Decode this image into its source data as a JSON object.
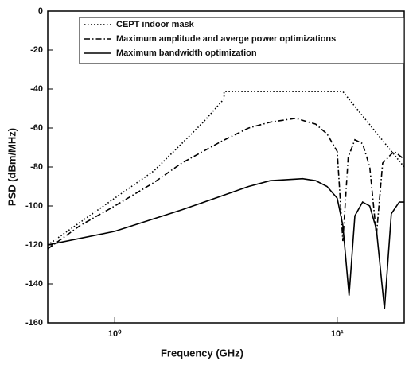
{
  "chart_data": {
    "type": "line",
    "xlabel": "Frequency (GHz)",
    "ylabel": "PSD (dBm/MHz)",
    "xscale": "log",
    "xlim": [
      0.5,
      20
    ],
    "ylim": [
      -160,
      0
    ],
    "xticks": [
      {
        "value": 1,
        "label": "10⁰"
      },
      {
        "value": 10,
        "label": "10¹"
      }
    ],
    "yticks": [
      0,
      -20,
      -40,
      -60,
      -80,
      -100,
      -120,
      -140,
      -160
    ],
    "legend": "top-right",
    "series": [
      {
        "name": "CEPT indoor mask",
        "color": "#000000",
        "line_style": "dotted",
        "x": [
          0.5,
          1,
          1.5,
          2,
          2.5,
          3.1,
          3.1,
          10.6,
          20
        ],
        "values": [
          -120,
          -96,
          -82,
          -68,
          -57,
          -45,
          -41.3,
          -41.3,
          -80
        ]
      },
      {
        "name": "Maximum amplitude and averge power optimizations",
        "color": "#000000",
        "line_style": "dashdot",
        "x": [
          0.5,
          0.7,
          1,
          1.5,
          2,
          3,
          4,
          5,
          6.5,
          8,
          9,
          10,
          10.6,
          11.2,
          12,
          13,
          14,
          15,
          16,
          18,
          20
        ],
        "values": [
          -122,
          -110,
          -100,
          -88,
          -78,
          -67,
          -60,
          -57,
          -55,
          -58,
          -63,
          -72,
          -118,
          -75,
          -66,
          -68,
          -80,
          -115,
          -78,
          -72,
          -76
        ]
      },
      {
        "name": "Maximum bandwidth optimization",
        "color": "#000000",
        "line_style": "solid",
        "x": [
          0.5,
          1,
          2,
          3,
          4,
          5,
          7,
          8,
          9,
          10,
          10.6,
          11.3,
          12,
          13,
          14,
          15,
          16.3,
          17.5,
          19,
          20
        ],
        "values": [
          -120,
          -113,
          -102,
          -95,
          -90,
          -87,
          -86,
          -87,
          -90,
          -96,
          -110,
          -146,
          -105,
          -98,
          -100,
          -112,
          -153,
          -104,
          -98,
          -98
        ]
      }
    ]
  }
}
